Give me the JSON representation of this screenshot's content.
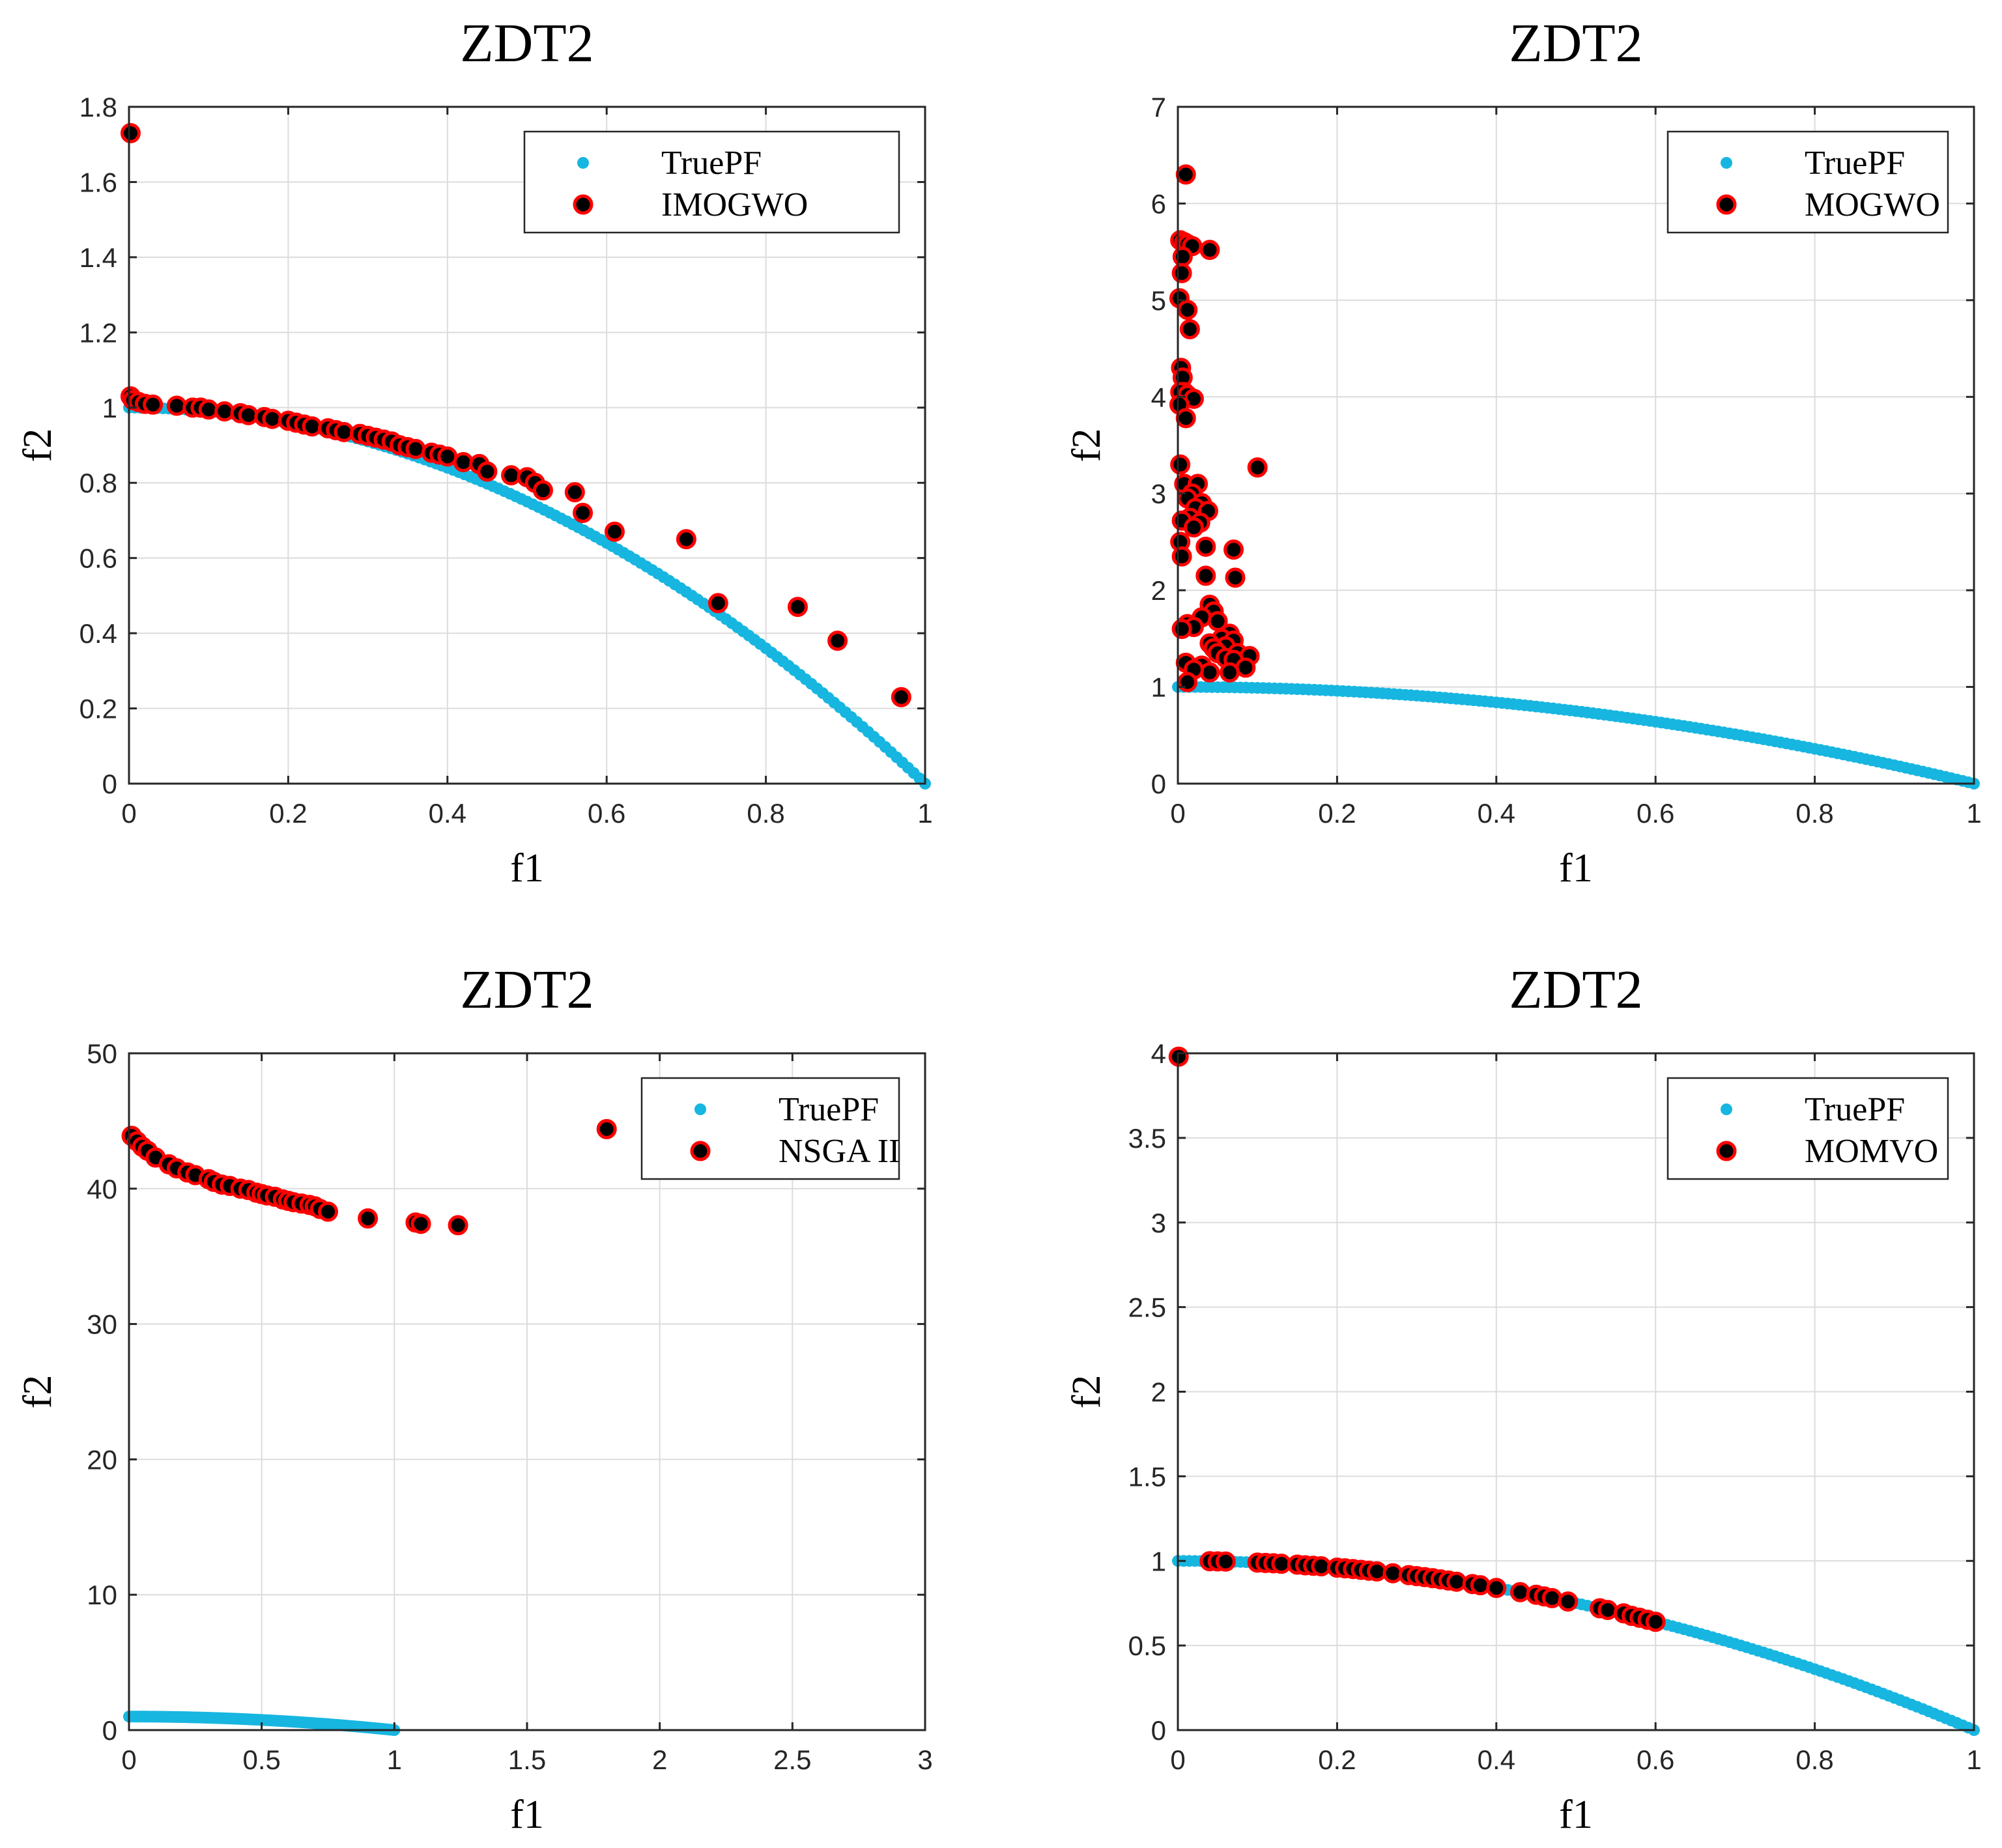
{
  "chart_data": [
    {
      "type": "scatter",
      "title": "ZDT2",
      "xlabel": "f1",
      "ylabel": "f2",
      "xlim": [
        0,
        1
      ],
      "ylim": [
        0,
        1.8
      ],
      "xticks": [
        0,
        0.2,
        0.4,
        0.6,
        0.8,
        1
      ],
      "yticks": [
        0,
        0.2,
        0.4,
        0.6,
        0.8,
        1,
        1.2,
        1.4,
        1.6,
        1.8
      ],
      "xtick_labels": [
        "0",
        "0.2",
        "0.4",
        "0.6",
        "0.8",
        "1"
      ],
      "ytick_labels": [
        "0",
        "0.2",
        "0.4",
        "0.6",
        "0.8",
        "1",
        "1.2",
        "1.4",
        "1.6",
        "1.8"
      ],
      "grid": true,
      "legend_position": "top-right",
      "series": [
        {
          "name": "TruePF",
          "color": "#17b6e0",
          "kind": "curve",
          "x_range": [
            0,
            1
          ]
        },
        {
          "name": "IMOGWO",
          "color": "#ff0000",
          "kind": "markers",
          "points": [
            [
              0.002,
              1.73
            ],
            [
              0.002,
              1.03
            ],
            [
              0.005,
              1.02
            ],
            [
              0.012,
              1.015
            ],
            [
              0.02,
              1.01
            ],
            [
              0.03,
              1.008
            ],
            [
              0.06,
              1.005
            ],
            [
              0.08,
              1.0
            ],
            [
              0.09,
              1.0
            ],
            [
              0.1,
              0.995
            ],
            [
              0.12,
              0.99
            ],
            [
              0.14,
              0.985
            ],
            [
              0.15,
              0.98
            ],
            [
              0.17,
              0.975
            ],
            [
              0.18,
              0.97
            ],
            [
              0.2,
              0.965
            ],
            [
              0.21,
              0.96
            ],
            [
              0.22,
              0.955
            ],
            [
              0.23,
              0.95
            ],
            [
              0.25,
              0.945
            ],
            [
              0.26,
              0.94
            ],
            [
              0.27,
              0.935
            ],
            [
              0.29,
              0.93
            ],
            [
              0.3,
              0.925
            ],
            [
              0.31,
              0.92
            ],
            [
              0.32,
              0.915
            ],
            [
              0.33,
              0.91
            ],
            [
              0.34,
              0.9
            ],
            [
              0.35,
              0.895
            ],
            [
              0.36,
              0.89
            ],
            [
              0.38,
              0.88
            ],
            [
              0.39,
              0.875
            ],
            [
              0.4,
              0.87
            ],
            [
              0.42,
              0.855
            ],
            [
              0.44,
              0.85
            ],
            [
              0.45,
              0.83
            ],
            [
              0.48,
              0.82
            ],
            [
              0.5,
              0.815
            ],
            [
              0.51,
              0.8
            ],
            [
              0.52,
              0.78
            ],
            [
              0.56,
              0.775
            ],
            [
              0.57,
              0.72
            ],
            [
              0.61,
              0.67
            ],
            [
              0.7,
              0.65
            ],
            [
              0.74,
              0.48
            ],
            [
              0.84,
              0.47
            ],
            [
              0.89,
              0.38
            ],
            [
              0.97,
              0.23
            ]
          ]
        }
      ]
    },
    {
      "type": "scatter",
      "title": "ZDT2",
      "xlabel": "f1",
      "ylabel": "f2",
      "xlim": [
        0,
        1
      ],
      "ylim": [
        0,
        7
      ],
      "xticks": [
        0,
        0.2,
        0.4,
        0.6,
        0.8,
        1
      ],
      "yticks": [
        0,
        1,
        2,
        3,
        4,
        5,
        6,
        7
      ],
      "xtick_labels": [
        "0",
        "0.2",
        "0.4",
        "0.6",
        "0.8",
        "1"
      ],
      "ytick_labels": [
        "0",
        "1",
        "2",
        "3",
        "4",
        "5",
        "6",
        "7"
      ],
      "grid": true,
      "legend_position": "top-right",
      "series": [
        {
          "name": "TruePF",
          "color": "#17b6e0",
          "kind": "curve",
          "x_range": [
            0,
            1
          ]
        },
        {
          "name": "MOGWO",
          "color": "#ff0000",
          "kind": "markers",
          "points": [
            [
              0.01,
              6.3
            ],
            [
              0.003,
              5.62
            ],
            [
              0.008,
              5.6
            ],
            [
              0.012,
              5.58
            ],
            [
              0.018,
              5.56
            ],
            [
              0.04,
              5.52
            ],
            [
              0.006,
              5.45
            ],
            [
              0.005,
              5.28
            ],
            [
              0.002,
              5.02
            ],
            [
              0.012,
              4.9
            ],
            [
              0.015,
              4.7
            ],
            [
              0.004,
              4.3
            ],
            [
              0.006,
              4.2
            ],
            [
              0.008,
              4.05
            ],
            [
              0.003,
              4.05
            ],
            [
              0.012,
              4.02
            ],
            [
              0.02,
              3.98
            ],
            [
              0.002,
              3.92
            ],
            [
              0.01,
              3.78
            ],
            [
              0.003,
              3.3
            ],
            [
              0.1,
              3.27
            ],
            [
              0.008,
              3.1
            ],
            [
              0.025,
              3.1
            ],
            [
              0.018,
              3.0
            ],
            [
              0.012,
              2.95
            ],
            [
              0.03,
              2.9
            ],
            [
              0.022,
              2.85
            ],
            [
              0.038,
              2.82
            ],
            [
              0.015,
              2.75
            ],
            [
              0.005,
              2.72
            ],
            [
              0.028,
              2.7
            ],
            [
              0.02,
              2.65
            ],
            [
              0.003,
              2.5
            ],
            [
              0.035,
              2.45
            ],
            [
              0.07,
              2.42
            ],
            [
              0.005,
              2.35
            ],
            [
              0.035,
              2.15
            ],
            [
              0.072,
              2.13
            ],
            [
              0.04,
              1.85
            ],
            [
              0.045,
              1.78
            ],
            [
              0.03,
              1.72
            ],
            [
              0.05,
              1.68
            ],
            [
              0.012,
              1.65
            ],
            [
              0.02,
              1.62
            ],
            [
              0.005,
              1.6
            ],
            [
              0.065,
              1.55
            ],
            [
              0.055,
              1.5
            ],
            [
              0.07,
              1.48
            ],
            [
              0.04,
              1.45
            ],
            [
              0.06,
              1.42
            ],
            [
              0.045,
              1.4
            ],
            [
              0.05,
              1.35
            ],
            [
              0.075,
              1.35
            ],
            [
              0.09,
              1.32
            ],
            [
              0.06,
              1.3
            ],
            [
              0.07,
              1.28
            ],
            [
              0.01,
              1.25
            ],
            [
              0.03,
              1.22
            ],
            [
              0.085,
              1.2
            ],
            [
              0.04,
              1.15
            ],
            [
              0.02,
              1.18
            ],
            [
              0.065,
              1.15
            ],
            [
              0.012,
              1.05
            ]
          ]
        }
      ]
    },
    {
      "type": "scatter",
      "title": "ZDT2",
      "xlabel": "f1",
      "ylabel": "f2",
      "xlim": [
        0,
        3
      ],
      "ylim": [
        0,
        50
      ],
      "xticks": [
        0,
        0.5,
        1,
        1.5,
        2,
        2.5,
        3
      ],
      "yticks": [
        0,
        10,
        20,
        30,
        40,
        50
      ],
      "xtick_labels": [
        "0",
        "0.5",
        "1",
        "1.5",
        "2",
        "2.5",
        "3"
      ],
      "ytick_labels": [
        "0",
        "10",
        "20",
        "30",
        "40",
        "50"
      ],
      "grid": true,
      "legend_position": "top-right",
      "series": [
        {
          "name": "TruePF",
          "color": "#17b6e0",
          "kind": "curve",
          "x_range": [
            0,
            1
          ]
        },
        {
          "name": "NSGA II",
          "color": "#ff0000",
          "kind": "markers",
          "points": [
            [
              0.01,
              43.9
            ],
            [
              0.03,
              43.5
            ],
            [
              0.05,
              43.1
            ],
            [
              0.07,
              42.8
            ],
            [
              0.1,
              42.3
            ],
            [
              0.15,
              41.8
            ],
            [
              0.18,
              41.5
            ],
            [
              0.22,
              41.2
            ],
            [
              0.25,
              41.0
            ],
            [
              0.3,
              40.7
            ],
            [
              0.32,
              40.5
            ],
            [
              0.35,
              40.3
            ],
            [
              0.38,
              40.2
            ],
            [
              0.42,
              40.0
            ],
            [
              0.45,
              39.9
            ],
            [
              0.48,
              39.7
            ],
            [
              0.5,
              39.6
            ],
            [
              0.52,
              39.5
            ],
            [
              0.55,
              39.4
            ],
            [
              0.58,
              39.2
            ],
            [
              0.6,
              39.1
            ],
            [
              0.62,
              39.0
            ],
            [
              0.65,
              38.9
            ],
            [
              0.68,
              38.8
            ],
            [
              0.7,
              38.7
            ],
            [
              0.72,
              38.5
            ],
            [
              0.75,
              38.3
            ],
            [
              0.9,
              37.8
            ],
            [
              1.08,
              37.5
            ],
            [
              1.1,
              37.4
            ],
            [
              1.24,
              37.3
            ],
            [
              1.8,
              44.4
            ]
          ]
        }
      ]
    },
    {
      "type": "scatter",
      "title": "ZDT2",
      "xlabel": "f1",
      "ylabel": "f2",
      "xlim": [
        0,
        1
      ],
      "ylim": [
        0,
        4
      ],
      "xticks": [
        0,
        0.2,
        0.4,
        0.6,
        0.8,
        1
      ],
      "yticks": [
        0,
        0.5,
        1,
        1.5,
        2,
        2.5,
        3,
        3.5,
        4
      ],
      "xtick_labels": [
        "0",
        "0.2",
        "0.4",
        "0.6",
        "0.8",
        "1"
      ],
      "ytick_labels": [
        "0",
        "0.5",
        "1",
        "1.5",
        "2",
        "2.5",
        "3",
        "3.5",
        "4"
      ],
      "grid": true,
      "legend_position": "top-right",
      "series": [
        {
          "name": "TruePF",
          "color": "#17b6e0",
          "kind": "curve",
          "x_range": [
            0,
            1
          ]
        },
        {
          "name": "MOMVO",
          "color": "#ff0000",
          "kind": "markers",
          "points": [
            [
              0.001,
              3.98
            ],
            [
              0.04,
              0.998
            ],
            [
              0.05,
              0.997
            ],
            [
              0.06,
              0.996
            ],
            [
              0.1,
              0.99
            ],
            [
              0.11,
              0.988
            ],
            [
              0.12,
              0.986
            ],
            [
              0.13,
              0.983
            ],
            [
              0.15,
              0.978
            ],
            [
              0.16,
              0.974
            ],
            [
              0.17,
              0.971
            ],
            [
              0.18,
              0.968
            ],
            [
              0.2,
              0.96
            ],
            [
              0.21,
              0.956
            ],
            [
              0.22,
              0.952
            ],
            [
              0.23,
              0.947
            ],
            [
              0.24,
              0.942
            ],
            [
              0.25,
              0.938
            ],
            [
              0.27,
              0.927
            ],
            [
              0.29,
              0.916
            ],
            [
              0.3,
              0.91
            ],
            [
              0.31,
              0.904
            ],
            [
              0.32,
              0.898
            ],
            [
              0.33,
              0.891
            ],
            [
              0.34,
              0.884
            ],
            [
              0.35,
              0.877
            ],
            [
              0.37,
              0.863
            ],
            [
              0.38,
              0.856
            ],
            [
              0.4,
              0.84
            ],
            [
              0.43,
              0.815
            ],
            [
              0.45,
              0.8
            ],
            [
              0.46,
              0.79
            ],
            [
              0.47,
              0.78
            ],
            [
              0.49,
              0.76
            ],
            [
              0.53,
              0.72
            ],
            [
              0.54,
              0.71
            ],
            [
              0.56,
              0.69
            ],
            [
              0.57,
              0.675
            ],
            [
              0.58,
              0.664
            ],
            [
              0.59,
              0.652
            ],
            [
              0.6,
              0.64
            ]
          ]
        }
      ]
    }
  ]
}
